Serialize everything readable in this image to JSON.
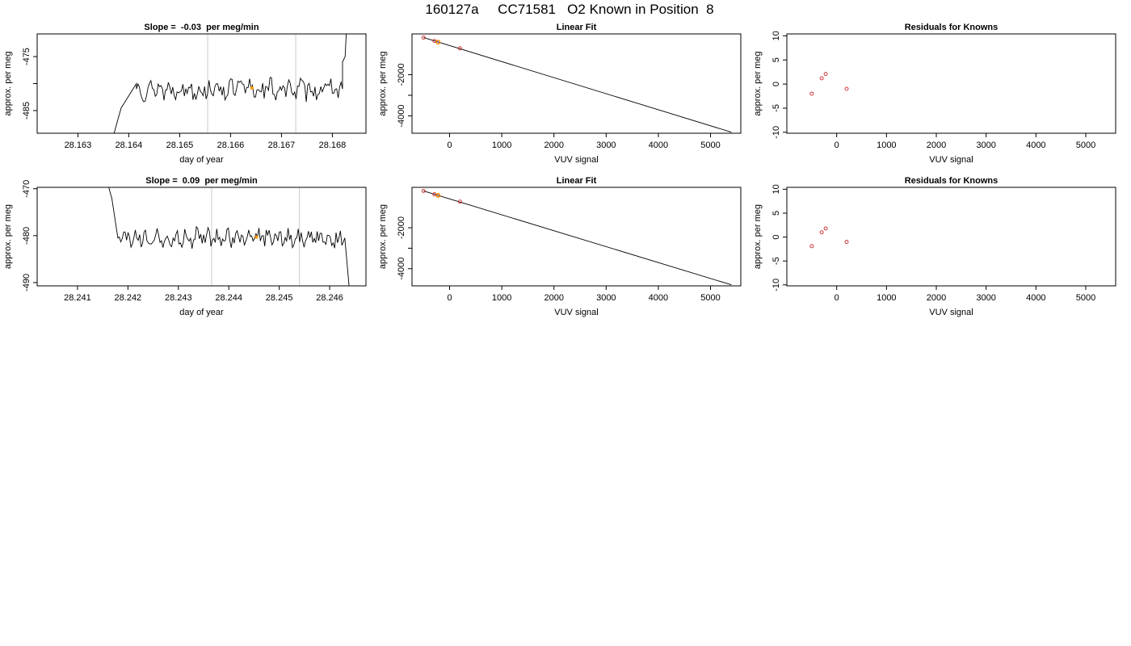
{
  "main_title": "160127a     CC71581   O2 Known in Position  8",
  "colors": {
    "line": "#000000",
    "gridline": "#d3d3d3",
    "point_red": "#cc2222",
    "point_orange": "#ff9900"
  },
  "chart_data": [
    {
      "id": "time-1",
      "type": "line",
      "title": "Slope =  -0.03  per meg/min",
      "xlabel": "day of year",
      "ylabel": "approx. per meg",
      "xlim": [
        28.1622,
        28.16866
      ],
      "ylim": [
        -489.2,
        -470.8
      ],
      "xticks": [
        28.163,
        28.164,
        28.165,
        28.166,
        28.167,
        28.168
      ],
      "xtick_labels": [
        "28.163",
        "28.164",
        "28.165",
        "28.166",
        "28.167",
        "28.168"
      ],
      "yticks": [
        -475,
        -480,
        -485
      ],
      "ytick_labels": [
        "-475",
        "",
        "-485"
      ],
      "vlines": [
        28.16555,
        28.16728
      ],
      "segments": [
        {
          "t0": 28.16363,
          "t1": 28.16385,
          "from": -492,
          "to": -484.5
        },
        {
          "t0": 28.16385,
          "t1": 28.16415,
          "from": -484.5,
          "to": -480
        },
        {
          "t0": 28.16415,
          "t1": 28.1682,
          "from": -481,
          "to": -481
        },
        {
          "t0": 28.1682,
          "t1": 28.16825,
          "from": -476,
          "to": -475
        },
        {
          "t0": 28.16825,
          "t1": 28.1683,
          "from": -475,
          "to": -466
        }
      ],
      "marker": {
        "x": 28.16642,
        "y": -480.8
      }
    },
    {
      "id": "fit-1",
      "type": "line",
      "title": "Linear Fit",
      "xlabel": "VUV signal",
      "ylabel": "approx. per meg",
      "xlim": [
        -720,
        5580
      ],
      "ylim": [
        -4840,
        -25
      ],
      "xticks": [
        0,
        1000,
        2000,
        3000,
        4000,
        5000
      ],
      "xtick_labels": [
        "0",
        "1000",
        "2000",
        "3000",
        "4000",
        "5000"
      ],
      "yticks": [
        -2000,
        -3000,
        -4000
      ],
      "ytick_labels": [
        "-2000",
        "",
        "-4000"
      ],
      "line": {
        "x": [
          -500,
          5400
        ],
        "y": [
          -200,
          -4790
        ]
      },
      "points_red": {
        "x": [
          -500,
          -290,
          -220,
          200
        ],
        "y": [
          -200,
          -365,
          -420,
          -725
        ]
      },
      "points_orange": {
        "x": [
          -220
        ],
        "y": [
          -420
        ]
      }
    },
    {
      "id": "resid-1",
      "type": "scatter",
      "title": "Residuals for Knowns",
      "xlabel": "VUV signal",
      "ylabel": "approx. per meg",
      "xlim": [
        -1000,
        5600
      ],
      "ylim": [
        -10.2,
        10.4
      ],
      "xticks": [
        0,
        1000,
        2000,
        3000,
        4000,
        5000
      ],
      "xtick_labels": [
        "0",
        "1000",
        "2000",
        "3000",
        "4000",
        "5000"
      ],
      "yticks": [
        10,
        5,
        0,
        -5,
        -10
      ],
      "ytick_labels": [
        "10",
        "5",
        "0",
        "-5",
        "-10"
      ],
      "points": {
        "x": [
          -500,
          -300,
          -220,
          200
        ],
        "y": [
          -2,
          1.2,
          2.1,
          -1
        ]
      }
    },
    {
      "id": "time-2",
      "type": "line",
      "title": "Slope =  0.09  per meg/min",
      "xlabel": "day of year",
      "ylabel": "approx. per meg",
      "xlim": [
        28.2402,
        28.24672
      ],
      "ylim": [
        -490.7,
        -469.7
      ],
      "xticks": [
        28.241,
        28.242,
        28.243,
        28.244,
        28.245,
        28.246
      ],
      "xtick_labels": [
        "28.241",
        "28.242",
        "28.243",
        "28.244",
        "28.245",
        "28.246"
      ],
      "yticks": [
        -470,
        -480,
        -490
      ],
      "ytick_labels": [
        "-470",
        "-480",
        "-490"
      ],
      "vlines": [
        28.24366,
        28.2454
      ],
      "segments": [
        {
          "t0": 28.2416,
          "t1": 28.24168,
          "from": -469,
          "to": -472
        },
        {
          "t0": 28.24168,
          "t1": 28.2418,
          "from": -472,
          "to": -480.5
        },
        {
          "t0": 28.2418,
          "t1": 28.2463,
          "from": -480.5,
          "to": -480.5
        },
        {
          "t0": 28.2463,
          "t1": 28.24642,
          "from": -480.5,
          "to": -495
        }
      ],
      "marker": {
        "x": 28.24455,
        "y": -480.3
      }
    },
    {
      "id": "fit-2",
      "type": "line",
      "title": "Linear Fit",
      "xlabel": "VUV signal",
      "ylabel": "approx. per meg",
      "xlim": [
        -720,
        5580
      ],
      "ylim": [
        -4840,
        -25
      ],
      "xticks": [
        0,
        1000,
        2000,
        3000,
        4000,
        5000
      ],
      "xtick_labels": [
        "0",
        "1000",
        "2000",
        "3000",
        "4000",
        "5000"
      ],
      "yticks": [
        -2000,
        -3000,
        -4000
      ],
      "ytick_labels": [
        "-2000",
        "",
        "-4000"
      ],
      "line": {
        "x": [
          -500,
          5400
        ],
        "y": [
          -200,
          -4790
        ]
      },
      "points_red": {
        "x": [
          -500,
          -290,
          -220,
          200
        ],
        "y": [
          -200,
          -365,
          -420,
          -725
        ]
      },
      "points_orange": {
        "x": [
          -220
        ],
        "y": [
          -420
        ]
      }
    },
    {
      "id": "resid-2",
      "type": "scatter",
      "title": "Residuals for Knowns",
      "xlabel": "VUV signal",
      "ylabel": "approx. per meg",
      "xlim": [
        -1000,
        5600
      ],
      "ylim": [
        -10.2,
        10.4
      ],
      "xticks": [
        0,
        1000,
        2000,
        3000,
        4000,
        5000
      ],
      "xtick_labels": [
        "0",
        "1000",
        "2000",
        "3000",
        "4000",
        "5000"
      ],
      "yticks": [
        10,
        5,
        0,
        -5,
        -10
      ],
      "ytick_labels": [
        "10",
        "5",
        "0",
        "-5",
        "-10"
      ],
      "points": {
        "x": [
          -500,
          -300,
          -220,
          200
        ],
        "y": [
          -1.9,
          1,
          1.8,
          -1
        ]
      }
    }
  ]
}
